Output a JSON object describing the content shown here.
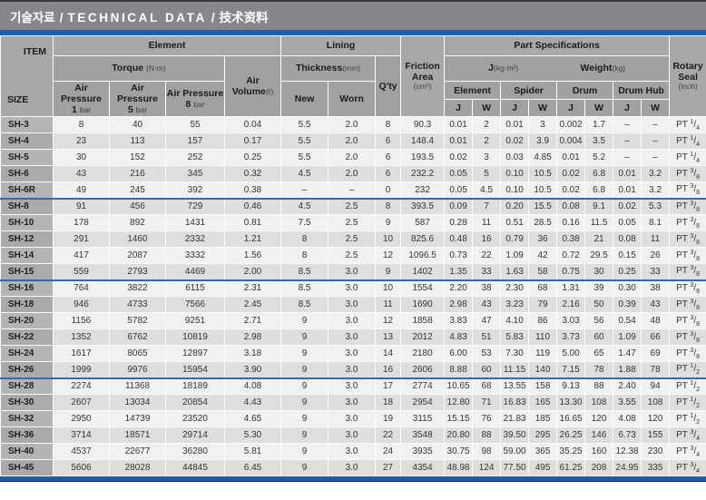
{
  "title": {
    "ko": "기술자료",
    "en": "TECHNICAL DATA",
    "zh": "技术资料",
    "sep": "/"
  },
  "colors": {
    "accent_blue": "#1d5cb0",
    "title_gray": "#85878a",
    "header_gray": "#a0a1a3",
    "row_light": "#f1f1f0",
    "row_dark": "#dededd",
    "divider_blue": "#2e6cb5"
  },
  "header": {
    "item": "ITEM",
    "size": "SIZE",
    "element": "Element",
    "lining": "Lining",
    "part_specs": "Part Specifications",
    "torque": "Torque",
    "torque_unit": "(N·m)",
    "air_pressure": "Air Pressure",
    "pressure_vals": [
      "1",
      "5",
      "8"
    ],
    "pressure_unit": "bar",
    "air_volume": "Air Volume",
    "air_volume_unit": "(ℓ)",
    "thickness": "Thickness",
    "thickness_unit": "(mm)",
    "new": "New",
    "worn": "Worn",
    "qty": "Q'ty",
    "friction_l1": "Friction",
    "friction_l2": "Area",
    "friction_unit": "(cm²)",
    "j_label": "J",
    "j_unit": "(kg·m²)",
    "weight_label": "Weight",
    "weight_unit": "(kg)",
    "parts": [
      "Element",
      "Spider",
      "Drum",
      "Drum Hub"
    ],
    "jw": [
      "J",
      "W"
    ],
    "rotary_l1": "Rotary",
    "rotary_l2": "Seal",
    "rotary_unit": "(inch)"
  },
  "table": {
    "seal_prefix": "PT",
    "col_names": [
      "size",
      "torque-1bar",
      "torque-5bar",
      "torque-8bar",
      "air-volume",
      "lining-new",
      "lining-worn",
      "qty",
      "friction-area",
      "element-j",
      "element-w",
      "spider-j",
      "spider-w",
      "drum-j",
      "drum-w",
      "drumhub-j",
      "drumhub-w",
      "rotary-seal"
    ],
    "group_breaks": [
      "SH-6R",
      "SH-15",
      "SH-26"
    ],
    "rows": [
      [
        "SH-3",
        "8",
        "40",
        "55",
        "0.04",
        "5.5",
        "2.0",
        "8",
        "90.3",
        "0.01",
        "2",
        "0.01",
        "3",
        "0.002",
        "1.7",
        "–",
        "–",
        "1/4"
      ],
      [
        "SH-4",
        "23",
        "113",
        "157",
        "0.17",
        "5.5",
        "2.0",
        "6",
        "148.4",
        "0.01",
        "2",
        "0.02",
        "3.9",
        "0.004",
        "3.5",
        "–",
        "–",
        "1/4"
      ],
      [
        "SH-5",
        "30",
        "152",
        "252",
        "0.25",
        "5.5",
        "2.0",
        "6",
        "193.5",
        "0.02",
        "3",
        "0.03",
        "4.85",
        "0.01",
        "5.2",
        "–",
        "–",
        "1/4"
      ],
      [
        "SH-6",
        "43",
        "216",
        "345",
        "0.32",
        "4.5",
        "2.0",
        "6",
        "232.2",
        "0.05",
        "5",
        "0.10",
        "10.5",
        "0.02",
        "6.8",
        "0.01",
        "3.2",
        "3/8"
      ],
      [
        "SH-6R",
        "49",
        "245",
        "392",
        "0.38",
        "–",
        "–",
        "0",
        "232",
        "0.05",
        "4.5",
        "0.10",
        "10.5",
        "0.02",
        "6.8",
        "0.01",
        "3.2",
        "3/8"
      ],
      [
        "SH-8",
        "91",
        "456",
        "729",
        "0.46",
        "4.5",
        "2.5",
        "8",
        "393.5",
        "0.09",
        "7",
        "0.20",
        "15.5",
        "0.08",
        "9.1",
        "0.02",
        "5.3",
        "3/8"
      ],
      [
        "SH-10",
        "178",
        "892",
        "1431",
        "0.81",
        "7.5",
        "2.5",
        "9",
        "587",
        "0.28",
        "11",
        "0.51",
        "28.5",
        "0.16",
        "11.5",
        "0.05",
        "8.1",
        "3/8"
      ],
      [
        "SH-12",
        "291",
        "1460",
        "2332",
        "1.21",
        "8",
        "2.5",
        "10",
        "825.6",
        "0.48",
        "16",
        "0.79",
        "36",
        "0.38",
        "21",
        "0.08",
        "11",
        "3/8"
      ],
      [
        "SH-14",
        "417",
        "2087",
        "3332",
        "1.56",
        "8",
        "2.5",
        "12",
        "1096.5",
        "0.73",
        "22",
        "1.09",
        "42",
        "0.72",
        "29.5",
        "0.15",
        "26",
        "3/8"
      ],
      [
        "SH-15",
        "559",
        "2793",
        "4469",
        "2.00",
        "8.5",
        "3.0",
        "9",
        "1402",
        "1.35",
        "33",
        "1.63",
        "58",
        "0.75",
        "30",
        "0.25",
        "33",
        "3/8"
      ],
      [
        "SH-16",
        "764",
        "3822",
        "6115",
        "2.31",
        "8.5",
        "3.0",
        "10",
        "1554",
        "2.20",
        "38",
        "2.30",
        "68",
        "1.31",
        "39",
        "0.30",
        "38",
        "3/8"
      ],
      [
        "SH-18",
        "946",
        "4733",
        "7566",
        "2.45",
        "8.5",
        "3.0",
        "11",
        "1690",
        "2.98",
        "43",
        "3.23",
        "79",
        "2.16",
        "50",
        "0.39",
        "43",
        "3/8"
      ],
      [
        "SH-20",
        "1156",
        "5782",
        "9251",
        "2.71",
        "9",
        "3.0",
        "12",
        "1858",
        "3.83",
        "47",
        "4.10",
        "86",
        "3.03",
        "56",
        "0.54",
        "48",
        "3/8"
      ],
      [
        "SH-22",
        "1352",
        "6762",
        "10819",
        "2.98",
        "9",
        "3.0",
        "13",
        "2012",
        "4.83",
        "51",
        "5.83",
        "110",
        "3.73",
        "60",
        "1.09",
        "66",
        "3/8"
      ],
      [
        "SH-24",
        "1617",
        "8065",
        "12897",
        "3.18",
        "9",
        "3.0",
        "14",
        "2180",
        "6.00",
        "53",
        "7.30",
        "119",
        "5.00",
        "65",
        "1.47",
        "69",
        "3/8"
      ],
      [
        "SH-26",
        "1999",
        "9976",
        "15954",
        "3.90",
        "9",
        "3.0",
        "16",
        "2606",
        "8.88",
        "60",
        "11.15",
        "140",
        "7.15",
        "78",
        "1.88",
        "78",
        "1/2"
      ],
      [
        "SH-28",
        "2274",
        "11368",
        "18189",
        "4.08",
        "9",
        "3.0",
        "17",
        "2774",
        "10.65",
        "68",
        "13.55",
        "158",
        "9.13",
        "88",
        "2.40",
        "94",
        "1/2"
      ],
      [
        "SH-30",
        "2607",
        "13034",
        "20854",
        "4.43",
        "9",
        "3.0",
        "18",
        "2954",
        "12.80",
        "71",
        "16.83",
        "165",
        "13.30",
        "108",
        "3.55",
        "108",
        "1/2"
      ],
      [
        "SH-32",
        "2950",
        "14739",
        "23520",
        "4.65",
        "9",
        "3.0",
        "19",
        "3115",
        "15.15",
        "76",
        "21.83",
        "185",
        "16.65",
        "120",
        "4.08",
        "120",
        "1/2"
      ],
      [
        "SH-36",
        "3714",
        "18571",
        "29714",
        "5.30",
        "9",
        "3.0",
        "22",
        "3548",
        "20.80",
        "88",
        "39.50",
        "295",
        "26.25",
        "146",
        "6.73",
        "155",
        "3/4"
      ],
      [
        "SH-40",
        "4537",
        "22677",
        "36280",
        "5.81",
        "9",
        "3.0",
        "24",
        "3935",
        "30.75",
        "98",
        "59.00",
        "365",
        "35.25",
        "160",
        "12.38",
        "230",
        "3/4"
      ],
      [
        "SH-45",
        "5606",
        "28028",
        "44845",
        "6.45",
        "9",
        "3.0",
        "27",
        "4354",
        "48.98",
        "124",
        "77.50",
        "495",
        "61.25",
        "208",
        "24.95",
        "335",
        "3/4"
      ]
    ]
  }
}
